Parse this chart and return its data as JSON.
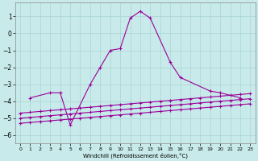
{
  "xlabel": "Windchill (Refroidissement éolien,°C)",
  "bg_color": "#c8eaea",
  "grid_color": "#aad4d4",
  "line_color": "#990099",
  "x_ticks": [
    0,
    1,
    2,
    3,
    4,
    5,
    6,
    7,
    8,
    9,
    10,
    11,
    12,
    13,
    14,
    15,
    16,
    17,
    18,
    19,
    20,
    21,
    22,
    23
  ],
  "ylim": [
    -6.5,
    1.8
  ],
  "xlim": [
    -0.5,
    23.5
  ],
  "yticks": [
    -6,
    -5,
    -4,
    -3,
    -2,
    -1,
    0,
    1
  ],
  "main_x": [
    1,
    3,
    4,
    5,
    7,
    8,
    9,
    10,
    11,
    12,
    13,
    15,
    16,
    19,
    20,
    22
  ],
  "main_y": [
    -3.8,
    -3.5,
    -3.5,
    -5.4,
    -3.0,
    -2.0,
    -1.0,
    -0.9,
    0.9,
    1.3,
    0.9,
    -1.7,
    -2.6,
    -3.4,
    -3.5,
    -3.8
  ],
  "line1_x": [
    0,
    1,
    2,
    3,
    4,
    5,
    6,
    7,
    8,
    9,
    10,
    11,
    12,
    13,
    14,
    15,
    16,
    17,
    18,
    19,
    20,
    21,
    22,
    23
  ],
  "line1_y": [
    -5.3,
    -5.25,
    -5.2,
    -5.15,
    -5.1,
    -5.05,
    -5.0,
    -4.95,
    -4.9,
    -4.85,
    -4.8,
    -4.75,
    -4.7,
    -4.65,
    -4.6,
    -4.55,
    -4.5,
    -4.45,
    -4.4,
    -4.35,
    -4.3,
    -4.25,
    -4.2,
    -4.15
  ],
  "line2_x": [
    0,
    1,
    2,
    3,
    4,
    5,
    6,
    7,
    8,
    9,
    10,
    11,
    12,
    13,
    14,
    15,
    16,
    17,
    18,
    19,
    20,
    21,
    22,
    23
  ],
  "line2_y": [
    -5.0,
    -4.95,
    -4.9,
    -4.85,
    -4.8,
    -4.75,
    -4.7,
    -4.65,
    -4.6,
    -4.55,
    -4.5,
    -4.45,
    -4.4,
    -4.35,
    -4.3,
    -4.25,
    -4.2,
    -4.15,
    -4.1,
    -4.05,
    -4.0,
    -3.95,
    -3.9,
    -3.85
  ],
  "line3_x": [
    0,
    1,
    2,
    3,
    4,
    5,
    6,
    7,
    8,
    9,
    10,
    11,
    12,
    13,
    14,
    15,
    16,
    17,
    18,
    19,
    20,
    21,
    22,
    23
  ],
  "line3_y": [
    -4.7,
    -4.65,
    -4.6,
    -4.55,
    -4.5,
    -4.45,
    -4.4,
    -4.35,
    -4.3,
    -4.25,
    -4.2,
    -4.15,
    -4.1,
    -4.05,
    -4.0,
    -3.95,
    -3.9,
    -3.85,
    -3.8,
    -3.75,
    -3.7,
    -3.65,
    -3.6,
    -3.55
  ]
}
